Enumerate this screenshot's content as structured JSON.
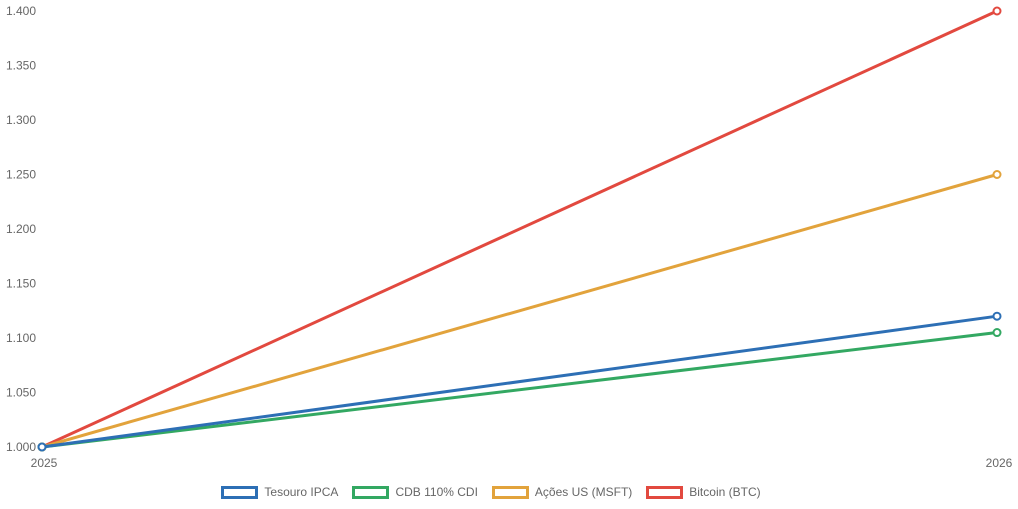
{
  "chart_data": {
    "type": "line",
    "title": "",
    "xlabel": "",
    "ylabel": "",
    "x": [
      "2025",
      "2026"
    ],
    "ylim": [
      1.0,
      1.4
    ],
    "ytick_step": 0.05,
    "ytick_labels": [
      "1.000",
      "1.050",
      "1.100",
      "1.150",
      "1.200",
      "1.250",
      "1.300",
      "1.350",
      "1.400"
    ],
    "grid": false,
    "axis_lines": false,
    "legend_position": "bottom",
    "text_color": "#666666",
    "background_color": "#ffffff",
    "point_style": "hollow-circle",
    "series": [
      {
        "name": "Tesouro IPCA",
        "slug": "tesouro-ipca",
        "color": "#2d6fb5",
        "values": [
          1.0,
          1.12
        ]
      },
      {
        "name": "CDB 110% CDI",
        "slug": "cdb-110-cdi",
        "color": "#33a862",
        "values": [
          1.0,
          1.105
        ]
      },
      {
        "name": "Ações US (MSFT)",
        "slug": "acoes-us-msft",
        "color": "#e2a33c",
        "values": [
          1.0,
          1.25
        ]
      },
      {
        "name": "Bitcoin (BTC)",
        "slug": "bitcoin-btc",
        "color": "#e2493f",
        "values": [
          1.0,
          1.4
        ]
      }
    ]
  }
}
